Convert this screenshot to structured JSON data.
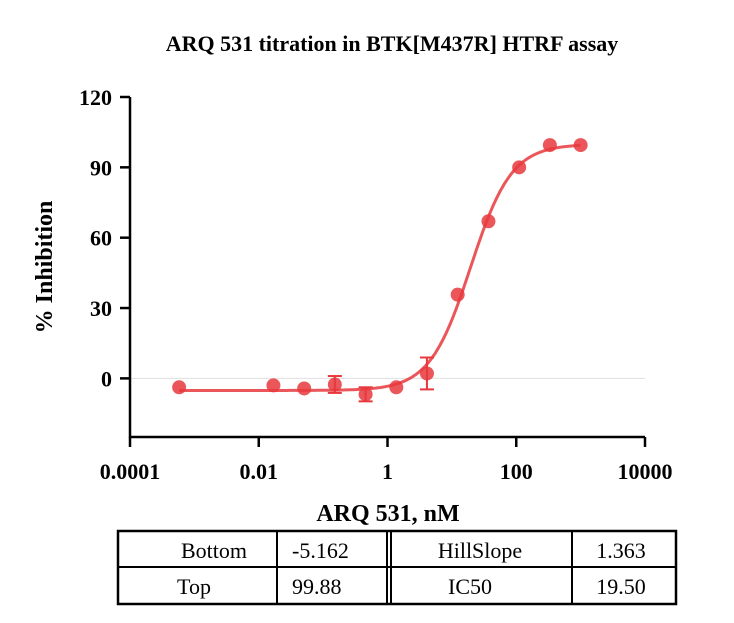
{
  "chart_data": {
    "type": "scatter",
    "title": "ARQ 531 titration in BTK[M437R] HTRF assay",
    "xlabel": "ARQ 531, nM",
    "ylabel": "% Inhibition",
    "xscale": "log",
    "xlim": [
      0.0001,
      10000
    ],
    "ylim": [
      -25,
      120
    ],
    "xticks": [
      0.0001,
      0.01,
      1,
      100,
      10000
    ],
    "xtick_labels": [
      "0.0001",
      "0.01",
      "1",
      "100",
      "10000"
    ],
    "yticks": [
      0,
      30,
      60,
      90,
      120
    ],
    "ytick_labels": [
      "0",
      "30",
      "60",
      "90",
      "120"
    ],
    "color": "#e8383d",
    "series": [
      {
        "name": "ARQ 531",
        "x": [
          0.00058,
          0.0169,
          0.0508,
          0.152,
          0.457,
          1.37,
          4.1,
          12.3,
          37,
          111,
          333,
          1000
        ],
        "y": [
          -3.8,
          -3,
          -4.3,
          -2.6,
          -6.8,
          -3.8,
          2.1,
          35.7,
          67,
          90,
          99.5,
          99.5
        ],
        "err": [
          0,
          0,
          0,
          3.6,
          3,
          0,
          6.8,
          0,
          0,
          0,
          0,
          0
        ]
      }
    ],
    "fit": {
      "model": "4PL",
      "bottom": -5.162,
      "top": 99.88,
      "hillslope": 1.363,
      "ic50": 19.5
    },
    "table": {
      "rows": [
        [
          "Bottom",
          "-5.162",
          "HillSlope",
          "1.363"
        ],
        [
          "Top",
          "99.88",
          "IC50",
          "19.50"
        ]
      ]
    }
  }
}
